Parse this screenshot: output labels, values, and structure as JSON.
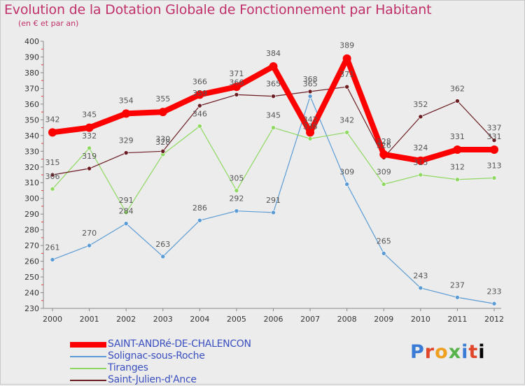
{
  "chart_data": {
    "type": "line",
    "title": "Evolution de la Dotation Globale de Fonctionnement par Habitant",
    "subtitle": "(en € et par an)",
    "x": [
      "2000",
      "2001",
      "2002",
      "2003",
      "2004",
      "2005",
      "2006",
      "2007",
      "2008",
      "2009",
      "2010",
      "2011",
      "2012"
    ],
    "ylim": [
      230,
      400
    ],
    "yticks": [
      "230",
      "240",
      "250",
      "260",
      "270",
      "280",
      "290",
      "300",
      "310",
      "320",
      "330",
      "340",
      "350",
      "360",
      "370",
      "380",
      "390",
      "400"
    ],
    "grid": false,
    "legend_position": "bottom-left",
    "series": [
      {
        "name": "SAINT-ANDRé-DE-CHALENCON",
        "color": "#ff0000",
        "values": [
          342,
          345,
          354,
          355,
          366,
          371,
          384,
          342,
          389,
          328,
          324,
          331,
          331
        ]
      },
      {
        "name": "Solignac-sous-Roche",
        "color": "#5b9bd5",
        "values": [
          261,
          270,
          284,
          263,
          286,
          292,
          291,
          365,
          309,
          265,
          243,
          237,
          233
        ]
      },
      {
        "name": "Tiranges",
        "color": "#8fd862",
        "values": [
          306,
          332,
          291,
          328,
          346,
          305,
          345,
          338,
          342,
          309,
          315,
          312,
          313
        ]
      },
      {
        "name": "Saint-Julien-d'Ance",
        "color": "#6b1c22",
        "values": [
          315,
          319,
          329,
          330,
          359,
          366,
          365,
          368,
          371,
          326,
          352,
          362,
          337
        ]
      }
    ]
  },
  "logo": {
    "letters": [
      "P",
      "r",
      "o",
      "x",
      "i",
      "t",
      "i"
    ]
  }
}
